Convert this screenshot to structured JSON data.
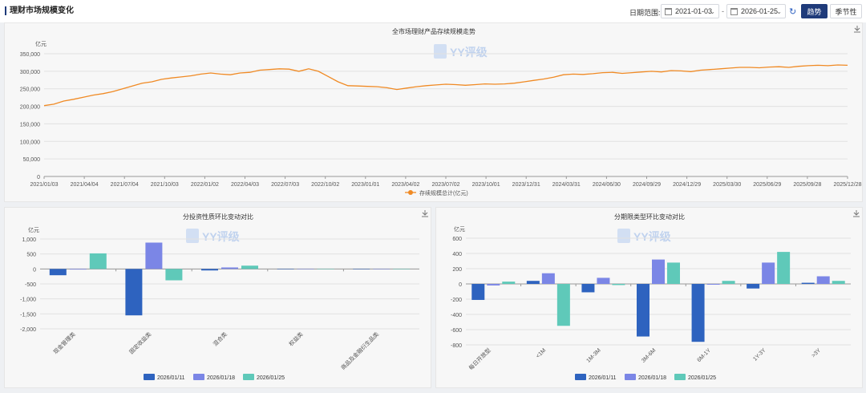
{
  "header": {
    "title": "理财市场规模变化",
    "date_range_label": "日期范围:",
    "start_date": "2021-01-03",
    "end_date": "2026-01-25",
    "separator": "-",
    "trend_button": "趋势",
    "season_button": "季节性"
  },
  "watermark": "YY评级",
  "chart_data": [
    {
      "type": "line",
      "title": "全市场理财产品存续规模走势",
      "ylabel": "亿元",
      "ylim": [
        0,
        350000
      ],
      "yticks": [
        "0",
        "50,000",
        "100,000",
        "150,000",
        "200,000",
        "250,000",
        "300,000",
        "350,000"
      ],
      "xticks": [
        "2021/01/03",
        "2021/04/04",
        "2021/07/04",
        "2021/10/03",
        "2022/01/02",
        "2022/04/03",
        "2022/07/03",
        "2022/10/02",
        "2023/01/01",
        "2023/04/02",
        "2023/07/02",
        "2023/10/01",
        "2023/12/31",
        "2024/03/31",
        "2024/06/30",
        "2024/09/29",
        "2024/12/29",
        "2025/03/30",
        "2025/06/29",
        "2025/09/28",
        "2025/12/28"
      ],
      "legend": "存续规模总计(亿元)",
      "color": "#f08a24",
      "series_points": [
        [
          0,
          202000
        ],
        [
          1,
          206000
        ],
        [
          2,
          215000
        ],
        [
          3,
          220000
        ],
        [
          4,
          226000
        ],
        [
          5,
          232000
        ],
        [
          6,
          236000
        ],
        [
          7,
          242000
        ],
        [
          8,
          250000
        ],
        [
          9,
          258000
        ],
        [
          10,
          266000
        ],
        [
          11,
          270000
        ],
        [
          12,
          277000
        ],
        [
          13,
          281000
        ],
        [
          14,
          284000
        ],
        [
          15,
          287000
        ],
        [
          16,
          292000
        ],
        [
          17,
          295000
        ],
        [
          18,
          292000
        ],
        [
          19,
          290000
        ],
        [
          20,
          295000
        ],
        [
          21,
          297000
        ],
        [
          22,
          303000
        ],
        [
          23,
          305000
        ],
        [
          24,
          307000
        ],
        [
          25,
          306000
        ],
        [
          26,
          300000
        ],
        [
          27,
          307000
        ],
        [
          28,
          300000
        ],
        [
          29,
          285000
        ],
        [
          30,
          270000
        ],
        [
          31,
          259000
        ],
        [
          32,
          258000
        ],
        [
          33,
          257000
        ],
        [
          34,
          256000
        ],
        [
          35,
          253000
        ],
        [
          36,
          248000
        ],
        [
          37,
          252000
        ],
        [
          38,
          256000
        ],
        [
          39,
          259000
        ],
        [
          40,
          261000
        ],
        [
          41,
          263000
        ],
        [
          42,
          262000
        ],
        [
          43,
          260000
        ],
        [
          44,
          262000
        ],
        [
          45,
          264000
        ],
        [
          46,
          263000
        ],
        [
          47,
          264000
        ],
        [
          48,
          266000
        ],
        [
          49,
          270000
        ],
        [
          50,
          274000
        ],
        [
          51,
          278000
        ],
        [
          52,
          283000
        ],
        [
          53,
          290000
        ],
        [
          54,
          292000
        ],
        [
          55,
          291000
        ],
        [
          56,
          293000
        ],
        [
          57,
          296000
        ],
        [
          58,
          297000
        ],
        [
          59,
          294000
        ],
        [
          60,
          296000
        ],
        [
          61,
          298000
        ],
        [
          62,
          300000
        ],
        [
          63,
          298000
        ],
        [
          64,
          302000
        ],
        [
          65,
          301000
        ],
        [
          66,
          299000
        ],
        [
          67,
          303000
        ],
        [
          68,
          305000
        ],
        [
          69,
          307000
        ],
        [
          70,
          309000
        ],
        [
          71,
          311000
        ],
        [
          72,
          311000
        ],
        [
          73,
          310000
        ],
        [
          74,
          312000
        ],
        [
          75,
          313000
        ],
        [
          76,
          311000
        ],
        [
          77,
          314000
        ],
        [
          78,
          316000
        ],
        [
          79,
          317000
        ],
        [
          80,
          316000
        ],
        [
          81,
          318000
        ],
        [
          82,
          317000
        ]
      ]
    },
    {
      "type": "bar",
      "title": "分投资性质环比变动对比",
      "ylabel": "亿元",
      "ylim": [
        -2000,
        1000
      ],
      "yticks": [
        "-2,000",
        "-1,500",
        "-1,000",
        "-500",
        "0",
        "500",
        "1,000"
      ],
      "categories": [
        "现金管理类",
        "固定收益类",
        "混合类",
        "权益类",
        "商品及金融衍生品类"
      ],
      "series": [
        {
          "name": "2026/01/11",
          "color": "#2e63bf",
          "values": [
            -210,
            -1550,
            -50,
            -5,
            -2
          ]
        },
        {
          "name": "2026/01/18",
          "color": "#7b86e6",
          "values": [
            -20,
            880,
            50,
            5,
            2
          ]
        },
        {
          "name": "2026/01/25",
          "color": "#5fc9b9",
          "values": [
            520,
            -380,
            110,
            8,
            3
          ]
        }
      ]
    },
    {
      "type": "bar",
      "title": "分期限类型环比变动对比",
      "ylabel": "亿元",
      "ylim": [
        -800,
        600
      ],
      "yticks": [
        "-800",
        "-600",
        "-400",
        "-200",
        "0",
        "200",
        "400",
        "600"
      ],
      "categories": [
        "每日开放型",
        "<1M",
        "1M-3M",
        "3M-6M",
        "6M-1Y",
        "1Y-3Y",
        ">3Y"
      ],
      "series": [
        {
          "name": "2026/01/11",
          "color": "#2e63bf",
          "values": [
            -210,
            40,
            -110,
            -690,
            -760,
            -60,
            15
          ]
        },
        {
          "name": "2026/01/18",
          "color": "#7b86e6",
          "values": [
            -20,
            140,
            80,
            320,
            -10,
            280,
            100
          ]
        },
        {
          "name": "2026/01/25",
          "color": "#5fc9b9",
          "values": [
            30,
            -550,
            -15,
            280,
            40,
            420,
            40
          ]
        }
      ]
    }
  ]
}
